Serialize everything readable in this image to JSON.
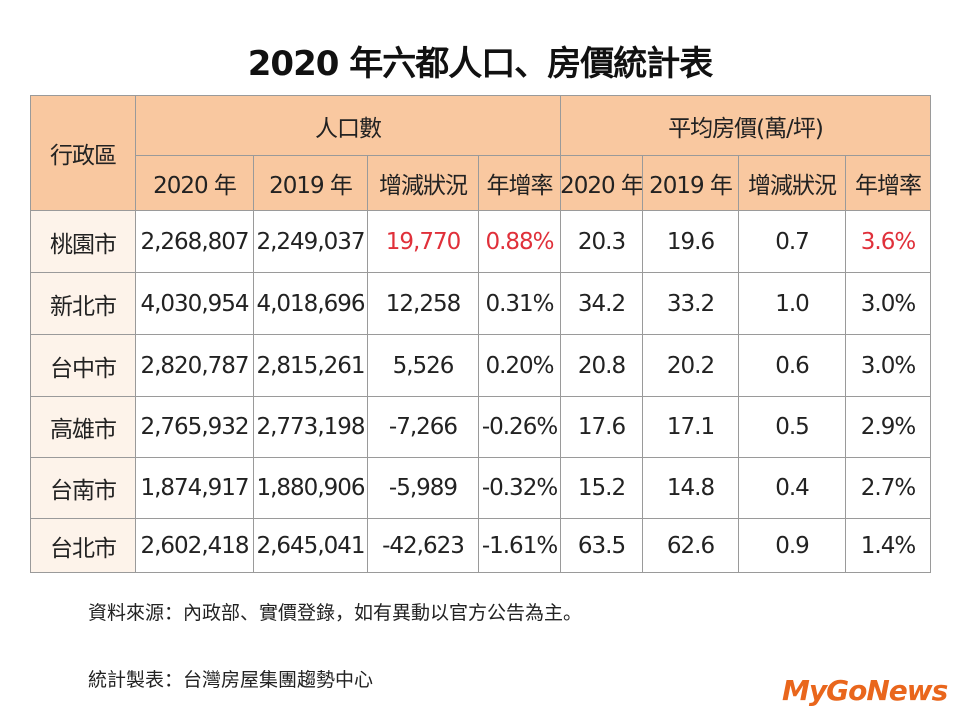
{
  "title": "2020 年六都人口、房價統計表",
  "table": {
    "corner": "行政區",
    "groups": [
      "人口數",
      "平均房價(萬/坪)"
    ],
    "subheaders": [
      "2020 年",
      "2019 年",
      "增減狀況",
      "年增率",
      "2020 年",
      "2019 年",
      "增減狀況",
      "年增率"
    ],
    "rows": [
      [
        "桃園市",
        "2,268,807",
        "2,249,037",
        "19,770",
        "0.88%",
        "20.3",
        "19.6",
        "0.7",
        "3.6%"
      ],
      [
        "新北市",
        "4,030,954",
        "4,018,696",
        "12,258",
        "0.31%",
        "34.2",
        "33.2",
        "1.0",
        "3.0%"
      ],
      [
        "台中市",
        "2,820,787",
        "2,815,261",
        "5,526",
        "0.20%",
        "20.8",
        "20.2",
        "0.6",
        "3.0%"
      ],
      [
        "高雄市",
        "2,765,932",
        "2,773,198",
        "-7,266",
        "-0.26%",
        "17.6",
        "17.1",
        "0.5",
        "2.9%"
      ],
      [
        "台南市",
        "1,874,917",
        "1,880,906",
        "-5,989",
        "-0.32%",
        "15.2",
        "14.8",
        "0.4",
        "2.7%"
      ],
      [
        "台北市",
        "2,602,418",
        "2,645,041",
        "-42,623",
        "-1.61%",
        "63.5",
        "62.6",
        "0.9",
        "1.4%"
      ]
    ],
    "header_color": "#f9c8a0",
    "highlight": {
      "color": "#e0303a",
      "cells": [
        [
          0,
          3
        ],
        [
          0,
          4
        ],
        [
          0,
          8
        ]
      ]
    }
  },
  "notes": [
    "資料來源：內政部、實價登錄，如有異動以官方公告為主。",
    "統計製表：台灣房屋集團趨勢中心"
  ],
  "logo": "MyGoNews"
}
